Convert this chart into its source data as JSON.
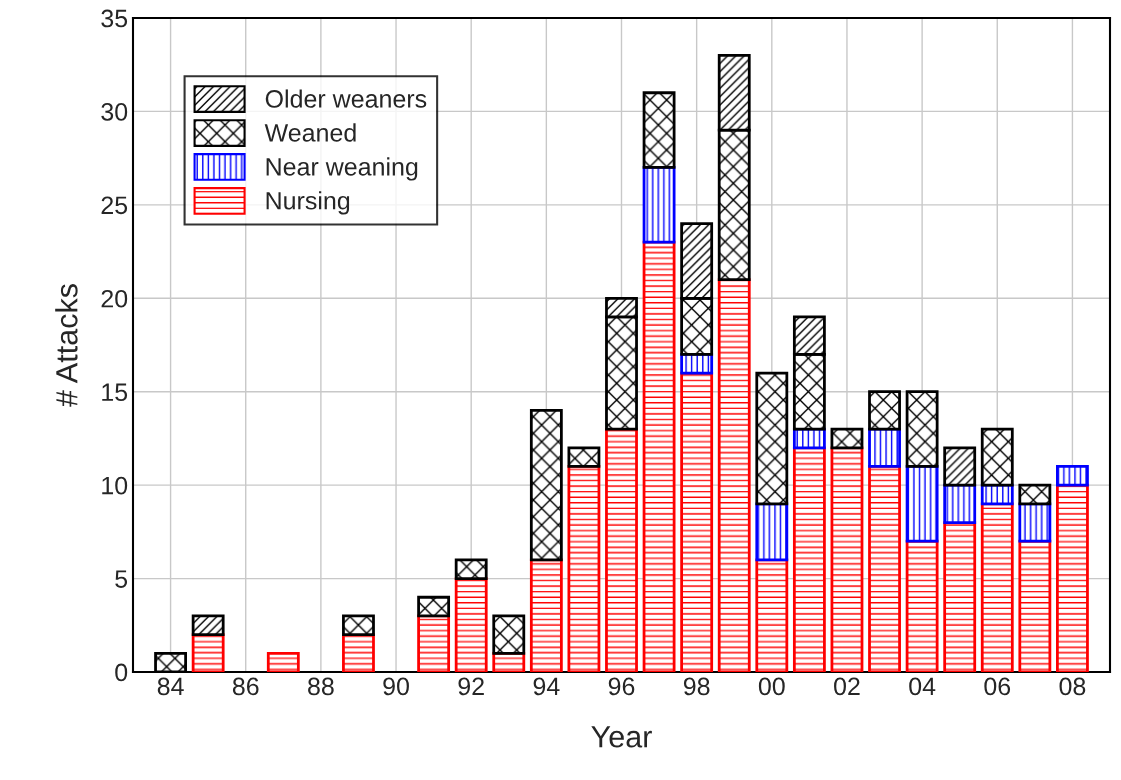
{
  "chart_data": {
    "type": "bar",
    "stacked": true,
    "xlabel": "Year",
    "ylabel": "# Attacks",
    "categories": [
      "84",
      null,
      "86",
      null,
      "88",
      null,
      "90",
      null,
      "92",
      null,
      "94",
      null,
      "96",
      null,
      "98",
      null,
      "00",
      null,
      "02",
      null,
      "04",
      null,
      "06",
      null,
      "08"
    ],
    "series": [
      {
        "name": "Nursing",
        "color": "#ff0000",
        "values": [
          0,
          2,
          0,
          1,
          0,
          2,
          0,
          3,
          5,
          1,
          6,
          11,
          13,
          23,
          16,
          21,
          6,
          12,
          12,
          11,
          7,
          8,
          9,
          7,
          10
        ]
      },
      {
        "name": "Near weaning",
        "color": "#0000ff",
        "values": [
          0,
          0,
          0,
          0,
          0,
          0,
          0,
          0,
          0,
          0,
          0,
          0,
          0,
          4,
          1,
          0,
          3,
          1,
          0,
          2,
          4,
          2,
          1,
          2,
          1
        ]
      },
      {
        "name": "Weaned",
        "color": "#000000",
        "values": [
          1,
          0,
          0,
          0,
          0,
          1,
          0,
          1,
          1,
          2,
          8,
          1,
          6,
          4,
          3,
          8,
          7,
          4,
          1,
          2,
          4,
          0,
          3,
          1,
          0
        ]
      },
      {
        "name": "Older weaners",
        "color": "#000000",
        "values": [
          0,
          1,
          0,
          0,
          0,
          0,
          0,
          0,
          0,
          0,
          0,
          0,
          1,
          0,
          4,
          4,
          0,
          2,
          0,
          0,
          0,
          2,
          0,
          0,
          0
        ]
      }
    ],
    "ylim": [
      0,
      35
    ],
    "yticks": [
      0,
      5,
      10,
      15,
      20,
      25,
      30,
      35
    ],
    "grid": true,
    "legend": "top left"
  }
}
